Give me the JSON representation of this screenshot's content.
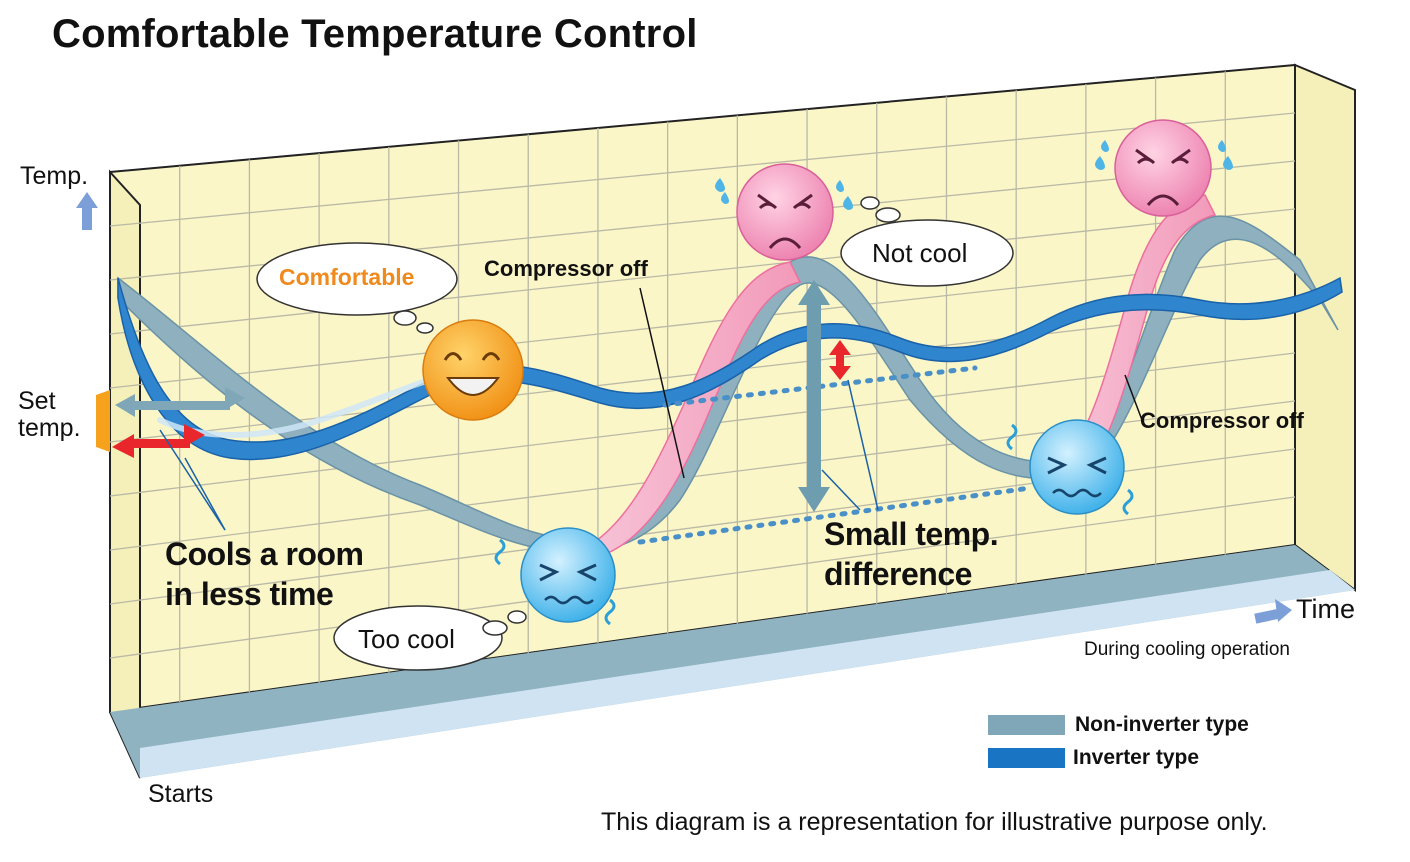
{
  "title": "Comfortable Temperature Control",
  "axes": {
    "y_label": "Temp.",
    "x_label": "Time",
    "set_temp": "Set\ntemp.",
    "start_label": "Starts",
    "operation_note": "During cooling operation"
  },
  "callouts": {
    "comfortable": "Comfortable",
    "too_cool": "Too cool",
    "not_cool": "Not cool",
    "compressor_off_1": "Compressor off",
    "compressor_off_2": "Compressor off",
    "cools_room": "Cools a room\nin less time",
    "small_diff": "Small temp.\ndifference"
  },
  "legend": [
    {
      "label": "Non-inverter type",
      "color": "#7fa7b8"
    },
    {
      "label": "Inverter type",
      "color": "#1a74c4"
    }
  ],
  "disclaimer": "This diagram is a representation for illustrative purpose only.",
  "colors": {
    "grid_bg": "#fbf6c8",
    "grid_line": "#b9b9a6",
    "non_inverter": "#7fa7b8",
    "inverter": "#1a74c4",
    "pink_ribbon": "#f4a9c4",
    "red_arrow": "#e8262b",
    "face_happy": "#f6a21d",
    "face_cold": "#6ec6f0",
    "face_hot": "#f49ac0"
  }
}
